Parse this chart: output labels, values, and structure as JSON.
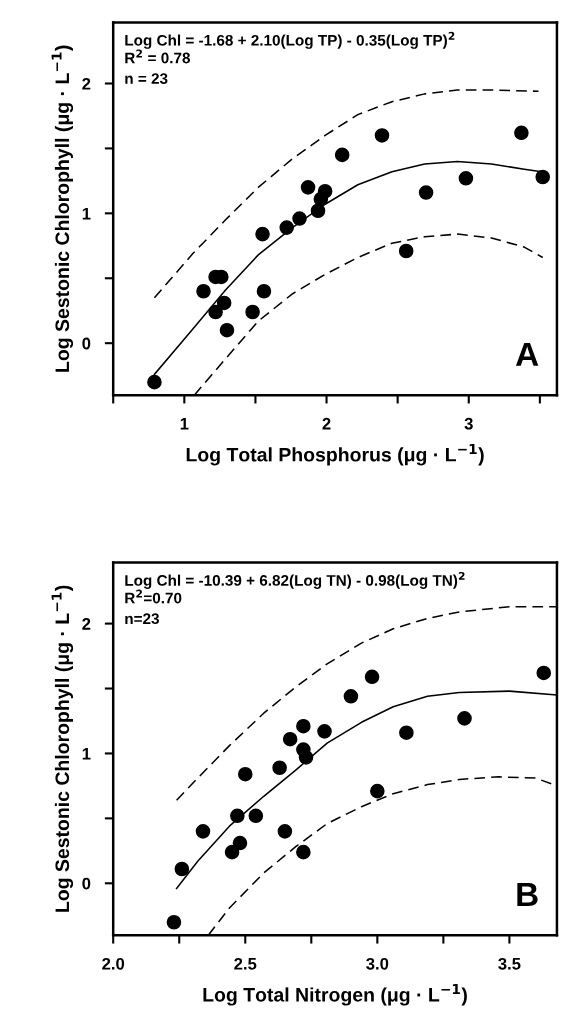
{
  "chart_data": [
    {
      "type": "scatter",
      "xlabel": "Log Total Phosphorus (μg · L$^{−1}$)",
      "ylabel": "Log Sestonic Chlorophyll (μg · L$^{−1}$)",
      "annotations": [
        "Log Chl = -1.68 + 2.10(Log TP) - 0.35(Log TP)$^{2}$",
        "R$^{2}$ = 0.78",
        "n = 23",
        "A"
      ],
      "xlim": [
        0.5,
        3.62
      ],
      "xticks": [
        {
          "value": 0.5,
          "label": null
        },
        1,
        {
          "value": 1.5,
          "label": null
        },
        2,
        {
          "value": 2.5,
          "label": null
        },
        3,
        {
          "value": 3.5,
          "label": null
        }
      ],
      "ylim": [
        -0.4,
        2.47
      ],
      "yticks": [
        {
          "value": 0,
          "label": "0"
        },
        {
          "value": 0.5,
          "label": null
        },
        1,
        {
          "value": 1.5,
          "label": null
        },
        2
      ],
      "grid": false,
      "legend": false,
      "series": [
        {
          "marker": "circle",
          "color": "#000000",
          "x": [
            0.79,
            1.135,
            1.22,
            1.26,
            1.22,
            1.28,
            1.3,
            1.48,
            1.56,
            1.55,
            1.72,
            1.81,
            1.87,
            1.94,
            1.96,
            1.99,
            2.11,
            2.39,
            2.56,
            2.7,
            2.98,
            3.37,
            3.52
          ],
          "values": [
            -0.3,
            0.4,
            0.51,
            0.51,
            0.24,
            0.31,
            0.1,
            0.24,
            0.4,
            0.84,
            0.89,
            0.96,
            1.2,
            1.02,
            1.11,
            1.17,
            1.45,
            1.6,
            0.71,
            1.16,
            1.27,
            1.62,
            1.28
          ]
        },
        {
          "type": "line",
          "marker": "none",
          "line_style": "solid",
          "color": "#000000",
          "x": [
            0.79,
            1.06,
            1.29,
            1.52,
            1.76,
            1.99,
            2.22,
            2.46,
            2.69,
            2.92,
            3.16,
            3.39,
            3.52
          ],
          "values": [
            -0.24,
            0.11,
            0.41,
            0.68,
            0.89,
            1.07,
            1.22,
            1.32,
            1.38,
            1.4,
            1.38,
            1.34,
            1.32
          ]
        },
        {
          "type": "line",
          "marker": "none",
          "line_style": "dashed",
          "color": "#000000",
          "x": [
            0.79,
            1.06,
            1.29,
            1.52,
            1.76,
            1.99,
            2.22,
            2.46,
            2.69,
            2.92,
            3.16,
            3.49
          ],
          "values": [
            0.35,
            0.69,
            0.95,
            1.2,
            1.42,
            1.6,
            1.76,
            1.86,
            1.92,
            1.95,
            1.95,
            1.94
          ]
        },
        {
          "type": "line",
          "marker": "none",
          "line_style": "dashed",
          "color": "#000000",
          "x": [
            1.07,
            1.29,
            1.52,
            1.76,
            1.99,
            2.22,
            2.46,
            2.69,
            2.92,
            3.16,
            3.39,
            3.52
          ],
          "values": [
            -0.4,
            -0.12,
            0.17,
            0.38,
            0.53,
            0.66,
            0.77,
            0.82,
            0.84,
            0.81,
            0.74,
            0.66
          ]
        }
      ]
    },
    {
      "type": "scatter",
      "xlabel": "Log Total Nitrogen (μg · L$^{−1}$)",
      "ylabel": "Log Sestonic Chlorophyll (μg · L$^{−1}$)",
      "annotations": [
        "Log Chl = -10.39 + 6.82(Log TN) - 0.98(Log TN)$^{2}$",
        "R$^{2}$=0.70",
        "n=23",
        "B"
      ],
      "xlim": [
        2.0,
        3.68
      ],
      "xticks": [
        {
          "value": 2.0,
          "label": "2.0"
        },
        {
          "value": 2.25,
          "label": null
        },
        2.5,
        {
          "value": 2.75,
          "label": null
        },
        {
          "value": 3.0,
          "label": "3.0"
        },
        {
          "value": 3.25,
          "label": null
        },
        3.5
      ],
      "ylim": [
        -0.4,
        2.47
      ],
      "yticks": [
        {
          "value": 0,
          "label": "0"
        },
        {
          "value": 0.5,
          "label": null
        },
        1,
        {
          "value": 1.5,
          "label": null
        },
        2
      ],
      "grid": false,
      "legend": false,
      "series": [
        {
          "marker": "circle",
          "color": "#000000",
          "x": [
            2.23,
            2.26,
            2.34,
            2.45,
            2.48,
            2.47,
            2.54,
            2.5,
            2.65,
            2.63,
            2.67,
            2.72,
            2.72,
            2.73,
            2.72,
            2.8,
            2.9,
            2.98,
            3.0,
            3.11,
            3.33,
            3.63
          ],
          "values": [
            -0.3,
            0.11,
            0.4,
            0.24,
            0.31,
            0.52,
            0.52,
            0.84,
            0.4,
            0.89,
            1.11,
            1.21,
            1.03,
            0.97,
            0.24,
            1.17,
            1.44,
            1.59,
            0.71,
            1.16,
            1.27,
            1.62
          ]
        },
        {
          "type": "line",
          "marker": "none",
          "line_style": "solid",
          "color": "#000000",
          "x": [
            2.24,
            2.32,
            2.44,
            2.57,
            2.69,
            2.81,
            2.94,
            3.06,
            3.19,
            3.31,
            3.5,
            3.68
          ],
          "values": [
            -0.04,
            0.17,
            0.44,
            0.67,
            0.87,
            1.08,
            1.24,
            1.36,
            1.44,
            1.47,
            1.48,
            1.45
          ]
        },
        {
          "type": "line",
          "marker": "none",
          "line_style": "dashed",
          "color": "#000000",
          "x": [
            2.24,
            2.32,
            2.44,
            2.57,
            2.69,
            2.81,
            2.94,
            3.06,
            3.19,
            3.31,
            3.5,
            3.68
          ],
          "values": [
            0.64,
            0.81,
            1.06,
            1.31,
            1.51,
            1.69,
            1.85,
            1.96,
            2.04,
            2.09,
            2.13,
            2.13
          ]
        },
        {
          "type": "line",
          "marker": "none",
          "line_style": "dashed",
          "color": "#000000",
          "x": [
            2.36,
            2.44,
            2.57,
            2.69,
            2.81,
            2.94,
            3.06,
            3.19,
            3.31,
            3.46,
            3.6,
            3.68
          ],
          "values": [
            -0.4,
            -0.19,
            0.08,
            0.28,
            0.46,
            0.59,
            0.69,
            0.76,
            0.8,
            0.82,
            0.81,
            0.75
          ]
        }
      ]
    }
  ]
}
